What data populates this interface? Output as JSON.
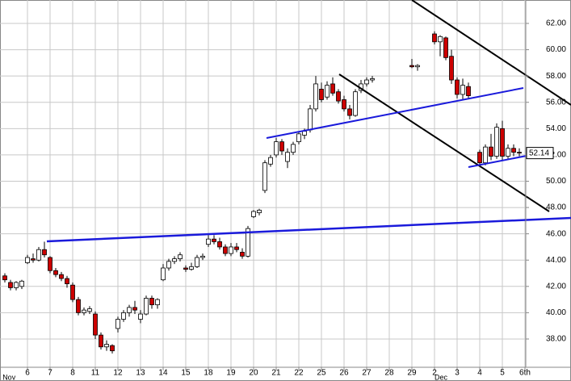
{
  "chart_data": {
    "type": "candlestick",
    "x": [
      -1.0,
      -0.75,
      -0.5,
      -0.25,
      0.0,
      0.25,
      0.5,
      0.75,
      1.0,
      1.25,
      1.5,
      1.75,
      2.0,
      2.25,
      2.5,
      2.75,
      3.0,
      3.25,
      3.5,
      3.75,
      4.0,
      4.25,
      4.5,
      4.75,
      5.0,
      5.25,
      5.5,
      5.75,
      6.0,
      6.25,
      6.5,
      6.75,
      7.0,
      7.25,
      7.5,
      7.75,
      8.0,
      8.25,
      8.5,
      8.75,
      9.0,
      9.25,
      9.5,
      9.75,
      10.0,
      10.25,
      10.5,
      10.75,
      11.0,
      11.25,
      11.5,
      11.75,
      12.0,
      12.25,
      12.5,
      12.75,
      13.0,
      13.25,
      13.5,
      13.75,
      14.0,
      14.25,
      14.5,
      14.75,
      15.0,
      15.25,
      17.0,
      17.25,
      18.0,
      18.25,
      18.5,
      18.75,
      19.0,
      19.25,
      19.5,
      20.0,
      20.25,
      20.5,
      20.75,
      21.0,
      21.25,
      21.5,
      21.75
    ],
    "open": [
      42.8,
      42.3,
      41.9,
      42.0,
      43.8,
      44.1,
      44.0,
      44.8,
      44.2,
      43.2,
      42.9,
      42.6,
      42.1,
      41.0,
      40.0,
      40.1,
      39.9,
      38.3,
      37.4,
      37.5,
      38.8,
      39.5,
      40.0,
      40.4,
      39.5,
      39.9,
      41.1,
      40.6,
      42.5,
      43.4,
      43.9,
      44.1,
      43.4,
      43.3,
      43.5,
      44.2,
      45.2,
      45.6,
      45.4,
      45.0,
      44.5,
      45.0,
      44.6,
      44.3,
      47.3,
      47.6,
      49.3,
      51.3,
      52.0,
      53.0,
      51.5,
      52.2,
      53.0,
      53.5,
      53.9,
      55.5,
      57.0,
      56.4,
      57.4,
      56.8,
      56.2,
      55.5,
      55.0,
      56.9,
      57.4,
      57.7,
      58.8,
      58.7,
      61.2,
      60.6,
      60.9,
      59.5,
      57.7,
      56.6,
      57.2,
      52.2,
      51.4,
      52.6,
      51.9,
      54.0,
      51.9,
      52.5,
      52.2
    ],
    "high": [
      43.0,
      42.5,
      42.4,
      42.5,
      44.4,
      44.5,
      45.0,
      45.4,
      44.3,
      43.4,
      43.1,
      42.8,
      42.3,
      41.2,
      40.4,
      40.5,
      40.1,
      38.5,
      37.9,
      37.6,
      39.7,
      40.2,
      40.6,
      40.9,
      40.2,
      41.3,
      41.3,
      41.1,
      43.7,
      44.1,
      44.3,
      44.6,
      43.6,
      43.8,
      44.4,
      44.5,
      45.9,
      45.9,
      45.7,
      45.2,
      45.3,
      45.3,
      44.9,
      46.6,
      47.8,
      47.9,
      51.6,
      52.0,
      53.3,
      53.2,
      52.5,
      53.0,
      53.8,
      54.0,
      55.8,
      58.0,
      57.5,
      57.6,
      57.9,
      57.0,
      56.5,
      55.8,
      57.0,
      57.7,
      57.9,
      58.0,
      59.3,
      58.9,
      61.4,
      61.1,
      61.0,
      60.0,
      57.9,
      57.8,
      57.5,
      52.4,
      52.8,
      53.6,
      54.4,
      54.6,
      52.8,
      52.8,
      52.5
    ],
    "low": [
      42.3,
      41.7,
      41.7,
      41.8,
      43.7,
      43.8,
      43.9,
      44.2,
      43.0,
      42.7,
      42.4,
      41.9,
      40.8,
      39.8,
      39.8,
      39.9,
      38.0,
      37.2,
      37.1,
      36.9,
      38.5,
      39.3,
      39.7,
      39.9,
      39.2,
      39.8,
      40.3,
      40.3,
      42.4,
      43.2,
      43.7,
      43.9,
      43.1,
      43.2,
      43.4,
      44.0,
      45.0,
      45.2,
      44.8,
      44.3,
      44.3,
      44.6,
      44.1,
      44.2,
      47.2,
      47.4,
      49.1,
      51.1,
      51.8,
      52.0,
      51.0,
      52.0,
      52.8,
      53.2,
      53.7,
      55.3,
      56.0,
      56.2,
      56.5,
      55.9,
      55.3,
      54.7,
      54.9,
      56.7,
      57.2,
      57.5,
      58.6,
      58.4,
      60.4,
      59.5,
      59.2,
      57.4,
      56.3,
      56.2,
      56.3,
      51.2,
      51.2,
      51.6,
      51.7,
      51.6,
      51.7,
      51.9,
      51.9
    ],
    "close": [
      42.5,
      41.9,
      42.3,
      42.4,
      44.2,
      44.0,
      44.8,
      44.4,
      43.2,
      42.9,
      42.6,
      42.2,
      41.0,
      40.0,
      40.2,
      40.3,
      38.3,
      37.4,
      37.6,
      37.1,
      39.5,
      40.0,
      40.4,
      40.2,
      39.9,
      41.1,
      40.6,
      41.0,
      43.4,
      43.9,
      44.1,
      44.4,
      43.3,
      43.5,
      44.2,
      44.3,
      45.6,
      45.4,
      45.0,
      44.5,
      45.0,
      44.8,
      44.3,
      46.4,
      47.7,
      47.8,
      51.4,
      51.8,
      53.0,
      52.3,
      52.2,
      52.8,
      53.6,
      53.8,
      55.5,
      57.4,
      56.2,
      57.3,
      56.7,
      56.1,
      55.5,
      55.0,
      56.8,
      57.4,
      57.7,
      57.8,
      58.7,
      58.8,
      60.6,
      61.0,
      59.4,
      57.7,
      56.6,
      57.3,
      56.5,
      51.4,
      52.6,
      51.9,
      54.1,
      51.9,
      52.5,
      52.2,
      52.14
    ],
    "up_color": "#ffffff",
    "down_color": "#cc0000",
    "last_price": 52.14,
    "xlim": [
      -1.214,
      22.036
    ],
    "xticks": [
      {
        "value": 0,
        "label": "6"
      },
      {
        "value": 1,
        "label": "7"
      },
      {
        "value": 2,
        "label": "8"
      },
      {
        "value": 3,
        "label": "11"
      },
      {
        "value": 4,
        "label": "12"
      },
      {
        "value": 5,
        "label": "13"
      },
      {
        "value": 6,
        "label": "14"
      },
      {
        "value": 7,
        "label": "15"
      },
      {
        "value": 8,
        "label": "18"
      },
      {
        "value": 9,
        "label": "19"
      },
      {
        "value": 10,
        "label": "20"
      },
      {
        "value": 11,
        "label": "21"
      },
      {
        "value": 12,
        "label": "22"
      },
      {
        "value": 13,
        "label": "25"
      },
      {
        "value": 14,
        "label": "26"
      },
      {
        "value": 15,
        "label": "27"
      },
      {
        "value": 16,
        "label": "28"
      },
      {
        "value": 17,
        "label": "29"
      },
      {
        "value": 18,
        "label": "2"
      },
      {
        "value": 19,
        "label": "3"
      },
      {
        "value": 20,
        "label": "4"
      },
      {
        "value": 21,
        "label": "5"
      },
      {
        "value": 22,
        "label": "6th"
      }
    ],
    "month_ticks": [
      {
        "value": -1.1,
        "label": "Nov"
      },
      {
        "value": 18,
        "label": "Dec"
      }
    ],
    "ylim": [
      35.85,
      63.78
    ],
    "yticks": [
      {
        "value": 38,
        "label": "38.00"
      },
      {
        "value": 40,
        "label": "40.00"
      },
      {
        "value": 42,
        "label": "42.00"
      },
      {
        "value": 44,
        "label": "44.00"
      },
      {
        "value": 46,
        "label": "46.00"
      },
      {
        "value": 48,
        "label": "48.00"
      },
      {
        "value": 50,
        "label": "50.00"
      },
      {
        "value": 52,
        "label": "52.00"
      },
      {
        "value": 54,
        "label": "54.00"
      },
      {
        "value": 56,
        "label": "56.00"
      },
      {
        "value": 58,
        "label": "58.00"
      },
      {
        "value": 60,
        "label": "60.00"
      },
      {
        "value": 62,
        "label": "62.00"
      }
    ],
    "grid": true
  }
}
